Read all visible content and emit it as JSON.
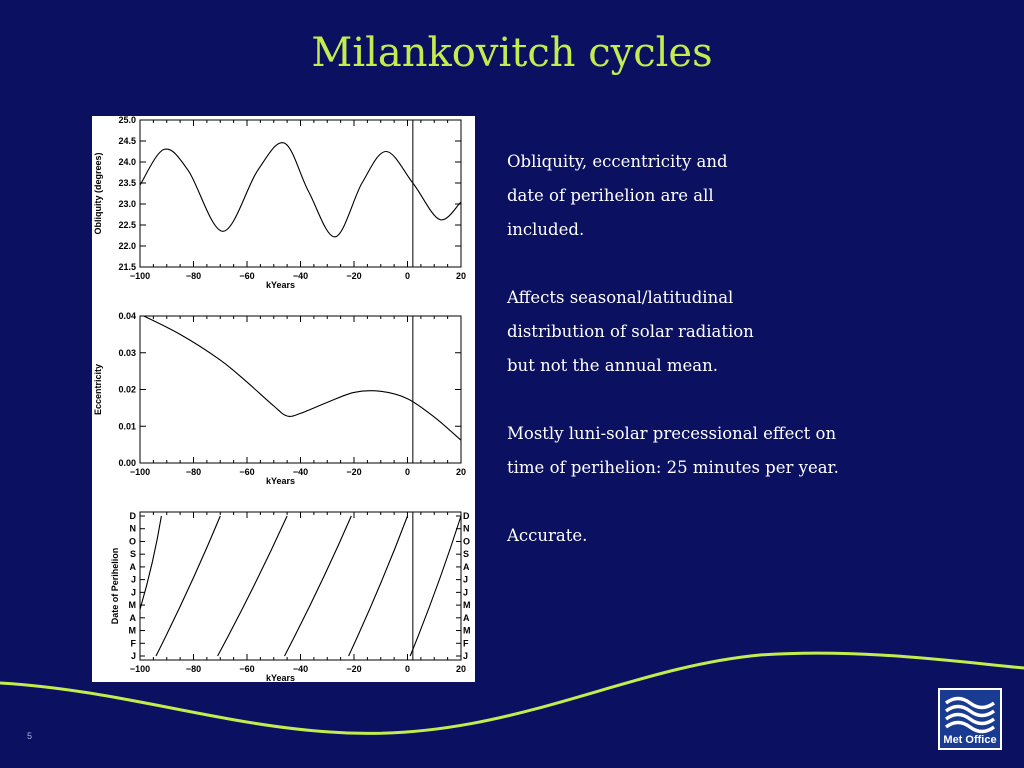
{
  "slide": {
    "title": "Milankovitch cycles",
    "number": "5",
    "body_lines": [
      [
        "Obliquity, eccentricity and",
        "date of perihelion are all",
        "included."
      ],
      [
        "Affects seasonal/latitudinal",
        "distribution of solar radiation",
        "but not the annual mean."
      ],
      [
        "Mostly luni-solar precessional effect on",
        "time of perihelion: 25 minutes per year."
      ],
      [
        "Accurate."
      ]
    ],
    "logo_text": "Met Office",
    "colors": {
      "background": "#0b1160",
      "title": "#c4ec4f",
      "swoosh": "#c4ec4f",
      "logo": "#1a3b92"
    }
  },
  "chart_data": [
    {
      "type": "line",
      "xlabel": "kYears",
      "ylabel": "Obliquity (degrees)",
      "xlim": [
        -100,
        20
      ],
      "ylim": [
        21.5,
        25.0
      ],
      "xticks": [
        "−100",
        "−80",
        "−60",
        "−40",
        "−20",
        "0",
        "20"
      ],
      "yticks": [
        "21.5",
        "22.0",
        "22.5",
        "23.0",
        "23.5",
        "24.0",
        "24.5",
        "25.0"
      ],
      "vline_x": 2,
      "x": [
        -100,
        -91,
        -82,
        -69,
        -56,
        -46,
        -37,
        -27,
        -17,
        -8,
        2,
        12,
        20
      ],
      "y": [
        23.45,
        24.3,
        23.8,
        22.35,
        23.8,
        24.45,
        23.3,
        22.22,
        23.5,
        24.25,
        23.5,
        22.63,
        23.05
      ]
    },
    {
      "type": "line",
      "xlabel": "kYears",
      "ylabel": "Eccentricity",
      "xlim": [
        -100,
        20
      ],
      "ylim": [
        0.0,
        0.04
      ],
      "xticks": [
        "−100",
        "−80",
        "−60",
        "−40",
        "−20",
        "0",
        "20"
      ],
      "yticks": [
        "0.00",
        "0.01",
        "0.02",
        "0.03",
        "0.04"
      ],
      "vline_x": 2,
      "x": [
        -100,
        -85,
        -70,
        -60,
        -50,
        -45,
        -40,
        -30,
        -20,
        -10,
        0,
        10,
        20
      ],
      "y": [
        0.0405,
        0.035,
        0.028,
        0.022,
        0.0155,
        0.0128,
        0.0135,
        0.0165,
        0.0192,
        0.0195,
        0.0175,
        0.0125,
        0.0062
      ]
    },
    {
      "type": "line",
      "xlabel": "kYears",
      "ylabel": "Date of Perihelion",
      "xlim": [
        -100,
        20
      ],
      "ylim": [
        0,
        12
      ],
      "xticks": [
        "−100",
        "−80",
        "−60",
        "−40",
        "−20",
        "0",
        "20"
      ],
      "yticks": [
        "J",
        "F",
        "M",
        "A",
        "M",
        "J",
        "J",
        "A",
        "S",
        "O",
        "N",
        "D"
      ],
      "vline_x": 2,
      "series": [
        {
          "x": [
            -100,
            -92
          ],
          "y": [
            4,
            12
          ]
        },
        {
          "x": [
            -94,
            -70
          ],
          "y": [
            0,
            12
          ]
        },
        {
          "x": [
            -71,
            -45
          ],
          "y": [
            0,
            12
          ]
        },
        {
          "x": [
            -46,
            -21
          ],
          "y": [
            0,
            12
          ]
        },
        {
          "x": [
            -22,
            0
          ],
          "y": [
            0,
            12
          ]
        },
        {
          "x": [
            1,
            20
          ],
          "y": [
            0,
            12
          ]
        }
      ]
    }
  ]
}
